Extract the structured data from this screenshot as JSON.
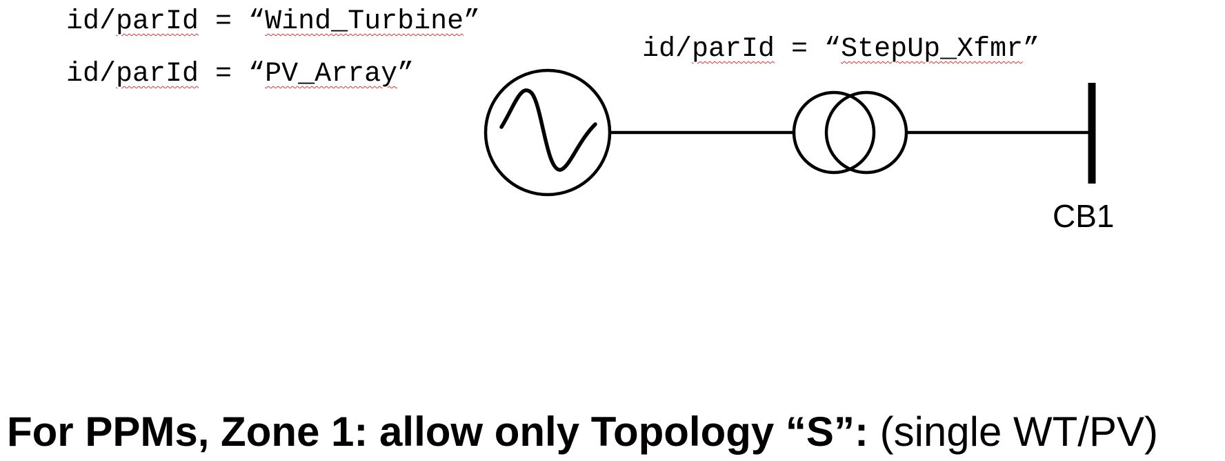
{
  "labels": {
    "wind": {
      "prefix": "id/",
      "key": "parId",
      "mid": " = “",
      "value": "Wind_Turbine",
      "suffix": "”"
    },
    "pv": {
      "prefix": "id/",
      "key": "parId",
      "mid": " = “",
      "value": "PV_Array",
      "suffix": "”"
    },
    "xfmr": {
      "prefix": "id/",
      "key": "parId",
      "mid": " = “",
      "value": "StepUp_Xfmr",
      "suffix": "”"
    }
  },
  "bus": {
    "label": "CB1"
  },
  "caption": {
    "bold": "For PPMs, Zone 1: allow only Topology “S”:",
    "normal": " (single WT/PV)"
  },
  "icons": {
    "generator": "ac-generator-icon",
    "transformer": "two-winding-transformer-icon",
    "bus": "busbar-icon"
  },
  "colors": {
    "stroke": "#000000",
    "spellcheck": "#e03030",
    "background": "#ffffff"
  }
}
